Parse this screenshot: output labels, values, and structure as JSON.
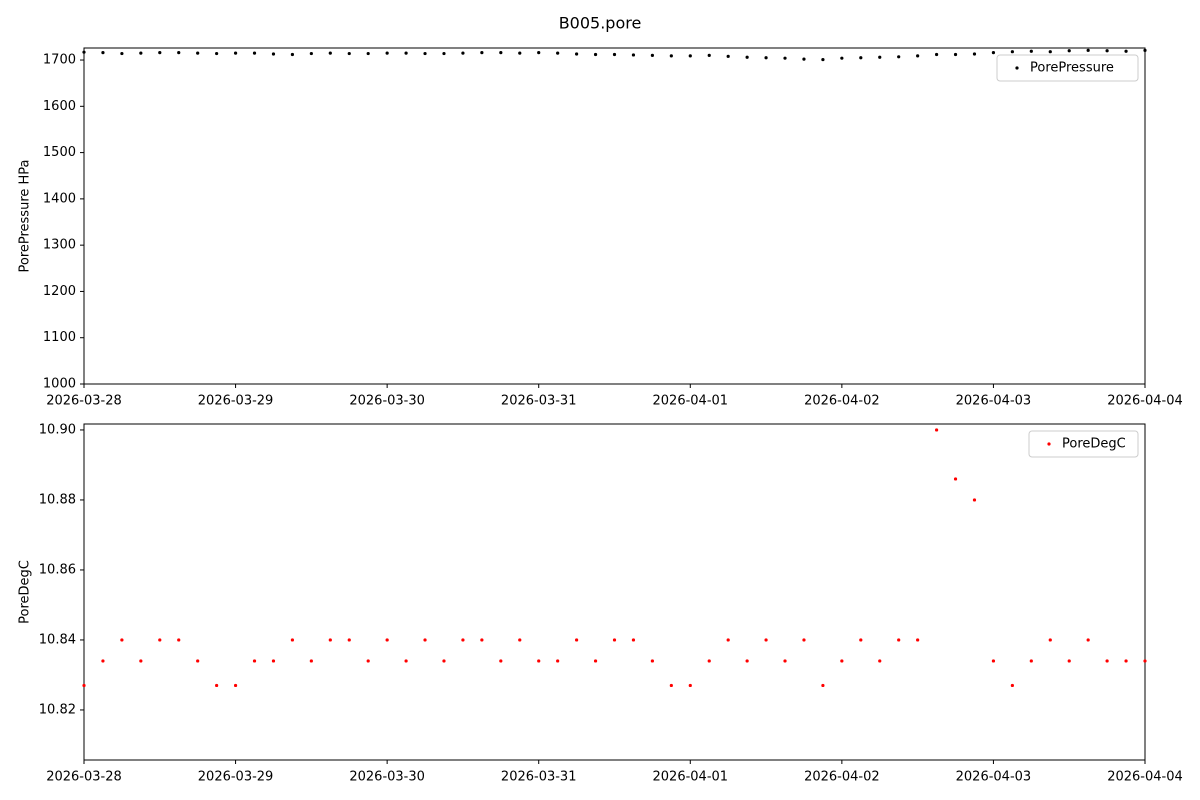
{
  "title": "B005.pore",
  "chart_data": [
    {
      "type": "scatter",
      "ylabel": "PorePressure HPa",
      "legend": "upper right",
      "x": [
        "2026-03-28T00:00",
        "2026-03-28T03:00",
        "2026-03-28T06:00",
        "2026-03-28T09:00",
        "2026-03-28T12:00",
        "2026-03-28T15:00",
        "2026-03-28T18:00",
        "2026-03-28T21:00",
        "2026-03-29T00:00",
        "2026-03-29T03:00",
        "2026-03-29T06:00",
        "2026-03-29T09:00",
        "2026-03-29T12:00",
        "2026-03-29T15:00",
        "2026-03-29T18:00",
        "2026-03-29T21:00",
        "2026-03-30T00:00",
        "2026-03-30T03:00",
        "2026-03-30T06:00",
        "2026-03-30T09:00",
        "2026-03-30T12:00",
        "2026-03-30T15:00",
        "2026-03-30T18:00",
        "2026-03-30T21:00",
        "2026-03-31T00:00",
        "2026-03-31T03:00",
        "2026-03-31T06:00",
        "2026-03-31T09:00",
        "2026-03-31T12:00",
        "2026-03-31T15:00",
        "2026-03-31T18:00",
        "2026-03-31T21:00",
        "2026-04-01T00:00",
        "2026-04-01T03:00",
        "2026-04-01T06:00",
        "2026-04-01T09:00",
        "2026-04-01T12:00",
        "2026-04-01T15:00",
        "2026-04-01T18:00",
        "2026-04-01T21:00",
        "2026-04-02T00:00",
        "2026-04-02T03:00",
        "2026-04-02T06:00",
        "2026-04-02T09:00",
        "2026-04-02T12:00",
        "2026-04-02T15:00",
        "2026-04-02T18:00",
        "2026-04-02T21:00",
        "2026-04-03T00:00",
        "2026-04-03T03:00",
        "2026-04-03T06:00",
        "2026-04-03T09:00",
        "2026-04-03T12:00",
        "2026-04-03T15:00",
        "2026-04-03T18:00",
        "2026-04-03T21:00",
        "2026-04-04T00:00"
      ],
      "series": [
        {
          "name": "PorePressure",
          "color": "#000000",
          "values": [
            1717,
            1716,
            1714,
            1715,
            1716,
            1716,
            1715,
            1714,
            1715,
            1715,
            1713,
            1712,
            1714,
            1715,
            1714,
            1714,
            1715,
            1715,
            1714,
            1714,
            1715,
            1716,
            1716,
            1715,
            1716,
            1715,
            1713,
            1712,
            1712,
            1711,
            1710,
            1709,
            1709,
            1710,
            1708,
            1706,
            1705,
            1704,
            1702,
            1701,
            1704,
            1705,
            1706,
            1707,
            1709,
            1712,
            1712,
            1713,
            1716,
            1718,
            1719,
            1718,
            1720,
            1721,
            1720,
            1719,
            1721
          ]
        }
      ],
      "xlim": [
        "2026-03-28",
        "2026-04-04"
      ],
      "xticks": [
        "2026-03-28",
        "2026-03-29",
        "2026-03-30",
        "2026-03-31",
        "2026-04-01",
        "2026-04-02",
        "2026-04-03",
        "2026-04-04"
      ],
      "ylim": [
        1000,
        1726
      ],
      "yticks": [
        1000,
        1100,
        1200,
        1300,
        1400,
        1500,
        1600,
        1700
      ]
    },
    {
      "type": "scatter",
      "ylabel": "PoreDegC",
      "legend": "upper right",
      "x": [
        "2026-03-28T00:00",
        "2026-03-28T03:00",
        "2026-03-28T06:00",
        "2026-03-28T09:00",
        "2026-03-28T12:00",
        "2026-03-28T15:00",
        "2026-03-28T18:00",
        "2026-03-28T21:00",
        "2026-03-29T00:00",
        "2026-03-29T03:00",
        "2026-03-29T06:00",
        "2026-03-29T09:00",
        "2026-03-29T12:00",
        "2026-03-29T15:00",
        "2026-03-29T18:00",
        "2026-03-29T21:00",
        "2026-03-30T00:00",
        "2026-03-30T03:00",
        "2026-03-30T06:00",
        "2026-03-30T09:00",
        "2026-03-30T12:00",
        "2026-03-30T15:00",
        "2026-03-30T18:00",
        "2026-03-30T21:00",
        "2026-03-31T00:00",
        "2026-03-31T03:00",
        "2026-03-31T06:00",
        "2026-03-31T09:00",
        "2026-03-31T12:00",
        "2026-03-31T15:00",
        "2026-03-31T18:00",
        "2026-03-31T21:00",
        "2026-04-01T00:00",
        "2026-04-01T03:00",
        "2026-04-01T06:00",
        "2026-04-01T09:00",
        "2026-04-01T12:00",
        "2026-04-01T15:00",
        "2026-04-01T18:00",
        "2026-04-01T21:00",
        "2026-04-02T00:00",
        "2026-04-02T03:00",
        "2026-04-02T06:00",
        "2026-04-02T09:00",
        "2026-04-02T12:00",
        "2026-04-02T15:00",
        "2026-04-02T18:00",
        "2026-04-02T21:00",
        "2026-04-03T00:00",
        "2026-04-03T03:00",
        "2026-04-03T06:00",
        "2026-04-03T09:00",
        "2026-04-03T12:00",
        "2026-04-03T15:00",
        "2026-04-03T18:00",
        "2026-04-03T21:00",
        "2026-04-04T00:00"
      ],
      "series": [
        {
          "name": "PoreDegC",
          "color": "#ff0000",
          "values": [
            10.827,
            10.834,
            10.84,
            10.834,
            10.84,
            10.84,
            10.834,
            10.827,
            10.827,
            10.834,
            10.834,
            10.84,
            10.834,
            10.84,
            10.84,
            10.834,
            10.84,
            10.834,
            10.84,
            10.834,
            10.84,
            10.84,
            10.834,
            10.84,
            10.834,
            10.834,
            10.84,
            10.834,
            10.84,
            10.84,
            10.834,
            10.827,
            10.827,
            10.834,
            10.84,
            10.834,
            10.84,
            10.834,
            10.84,
            10.827,
            10.834,
            10.84,
            10.834,
            10.84,
            10.84,
            10.9,
            10.886,
            10.88,
            10.834,
            10.827,
            10.834,
            10.84,
            10.834,
            10.84,
            10.834,
            10.834,
            10.834
          ]
        }
      ],
      "xlim": [
        "2026-03-28",
        "2026-04-04"
      ],
      "xticks": [
        "2026-03-28",
        "2026-03-29",
        "2026-03-30",
        "2026-03-31",
        "2026-04-01",
        "2026-04-02",
        "2026-04-03",
        "2026-04-04"
      ],
      "ylim": [
        10.8057,
        10.9017
      ],
      "yticks": [
        10.82,
        10.84,
        10.86,
        10.88,
        {
          "value": 10.9,
          "label": "10.90"
        }
      ]
    }
  ]
}
